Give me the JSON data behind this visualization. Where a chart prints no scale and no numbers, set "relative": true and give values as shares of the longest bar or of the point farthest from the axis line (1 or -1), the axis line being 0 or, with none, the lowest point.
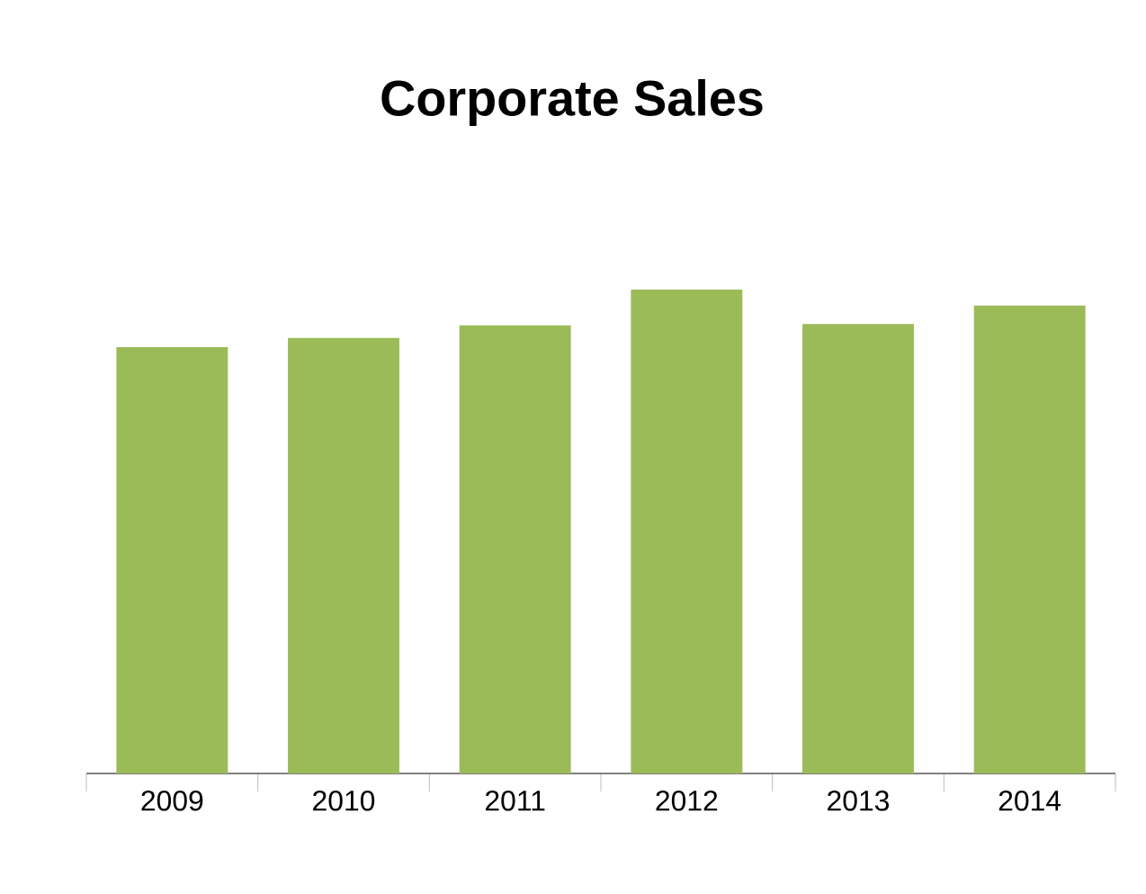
{
  "chart_data": {
    "type": "bar",
    "title": "Corporate Sales",
    "categories": [
      "2009",
      "2010",
      "2011",
      "2012",
      "2013",
      "2014"
    ],
    "values": [
      0.881,
      0.9,
      0.926,
      1,
      0.929,
      0.967
    ],
    "color": "#9bbb59",
    "relative": true
  }
}
